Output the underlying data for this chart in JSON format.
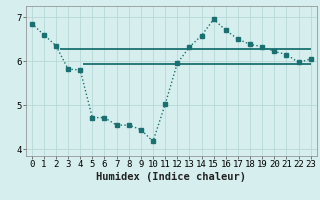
{
  "x": [
    0,
    1,
    2,
    3,
    4,
    5,
    6,
    7,
    8,
    9,
    10,
    11,
    12,
    13,
    14,
    15,
    16,
    17,
    18,
    19,
    20,
    21,
    22,
    23
  ],
  "y_curve": [
    6.85,
    6.6,
    6.35,
    5.82,
    5.8,
    4.72,
    4.72,
    4.55,
    4.55,
    4.45,
    4.18,
    5.02,
    5.95,
    6.32,
    6.58,
    6.95,
    6.7,
    6.5,
    6.38,
    6.33,
    6.22,
    6.15,
    5.97,
    6.05
  ],
  "y_hline1": 6.28,
  "y_hline2": 5.93,
  "hline1_xstart": 2.3,
  "hline1_xend": 23.0,
  "hline2_xstart": 4.2,
  "hline2_xend": 23.0,
  "bg_color": "#d6efee",
  "line_color": "#1a7070",
  "grid_color": "#b8d8d8",
  "xlim": [
    -0.5,
    23.5
  ],
  "ylim": [
    3.85,
    7.25
  ],
  "yticks": [
    4,
    5,
    6,
    7
  ],
  "xlabel": "Humidex (Indice chaleur)",
  "xlabel_fontsize": 7.5,
  "tick_fontsize": 6.5
}
